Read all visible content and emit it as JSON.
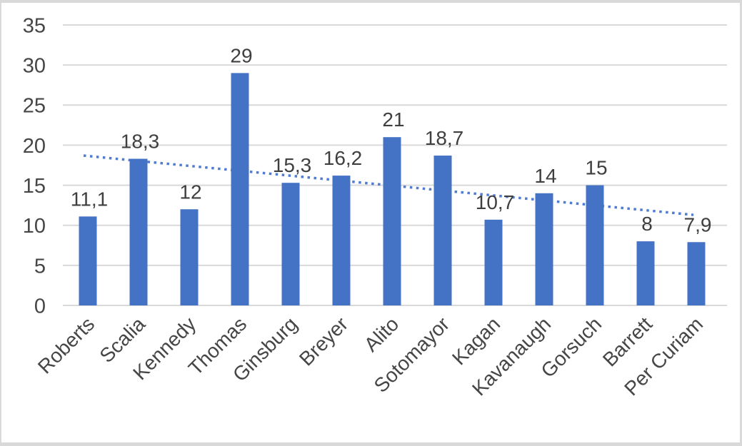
{
  "frame": {
    "border_color": "#d9d9d9",
    "background_color": "#ffffff"
  },
  "chart_data": {
    "type": "bar",
    "title": "",
    "xlabel": "",
    "ylabel": "",
    "categories": [
      "Roberts",
      "Scalia",
      "Kennedy",
      "Thomas",
      "Ginsburg",
      "Breyer",
      "Alito",
      "Sotomayor",
      "Kagan",
      "Kavanaugh",
      "Gorsuch",
      "Barrett",
      "Per Curiam"
    ],
    "values": [
      11.1,
      18.3,
      12,
      29,
      15.3,
      16.2,
      21,
      18.7,
      10.7,
      14,
      15,
      8,
      7.9
    ],
    "value_labels": [
      "11,1",
      "18,3",
      "12",
      "29",
      "15,3",
      "16,2",
      "21",
      "18,7",
      "10,7",
      "14",
      "15",
      "8",
      "7,9"
    ],
    "decimal_separator": ",",
    "y_ticks": [
      "0",
      "5",
      "10",
      "15",
      "20",
      "25",
      "30",
      "35"
    ],
    "y_tick_values": [
      0,
      5,
      10,
      15,
      20,
      25,
      30,
      35
    ],
    "ylim": [
      0,
      35
    ],
    "grid": "horizontal",
    "legend": "none",
    "bar_color": "#4472C4",
    "gridline_color": "#d9d9d9",
    "text_color": "#464646",
    "trendline": {
      "style": "dotted",
      "color": "#4f7cd2",
      "start_value": 18.7,
      "end_value": 11.3
    }
  }
}
